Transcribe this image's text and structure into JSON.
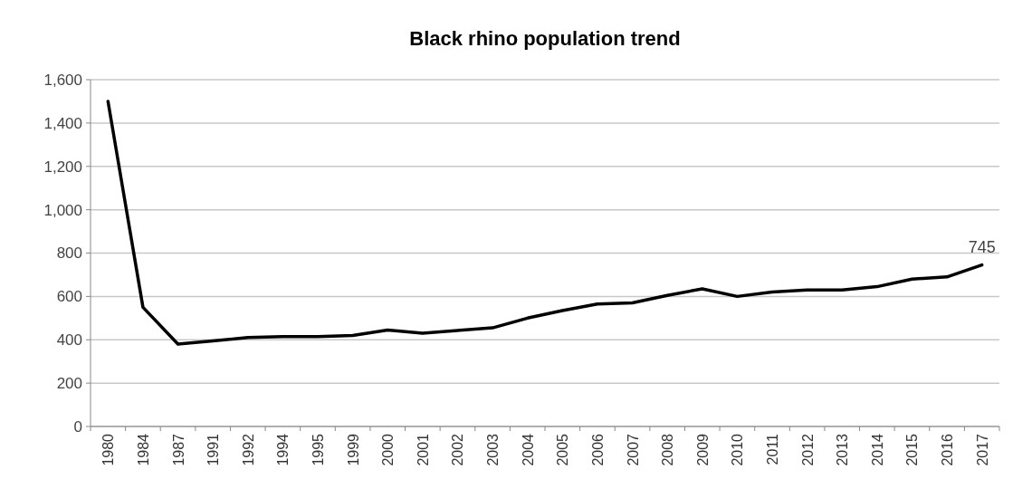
{
  "chart_data": {
    "type": "line",
    "title": "Black rhino population trend",
    "categories": [
      "1980",
      "1984",
      "1987",
      "1991",
      "1992",
      "1994",
      "1995",
      "1999",
      "2000",
      "2001",
      "2002",
      "2003",
      "2004",
      "2005",
      "2006",
      "2007",
      "2008",
      "2009",
      "2010",
      "2011",
      "2012",
      "2013",
      "2014",
      "2015",
      "2016",
      "2017"
    ],
    "series": [
      {
        "color": "#000000",
        "values": [
          1500,
          550,
          380,
          395,
          410,
          415,
          415,
          420,
          445,
          430,
          443,
          455,
          500,
          535,
          565,
          570,
          605,
          635,
          600,
          620,
          630,
          630,
          645,
          680,
          690,
          745
        ]
      }
    ],
    "ylim": [
      0,
      1600
    ],
    "yticks": [
      {
        "value": 0,
        "label": "0"
      },
      {
        "value": 200,
        "label": "200"
      },
      {
        "value": 400,
        "label": "400"
      },
      {
        "value": 600,
        "label": "600"
      },
      {
        "value": 800,
        "label": "800"
      },
      {
        "value": 1000,
        "label": "1,000"
      },
      {
        "value": 1200,
        "label": "1,200"
      },
      {
        "value": 1400,
        "label": "1,400"
      },
      {
        "value": 1600,
        "label": "1,600"
      }
    ],
    "grid": "y",
    "marker": "none",
    "line_style": "solid",
    "annotations": [
      {
        "text": "745",
        "x": "2017",
        "y": 745
      }
    ]
  }
}
